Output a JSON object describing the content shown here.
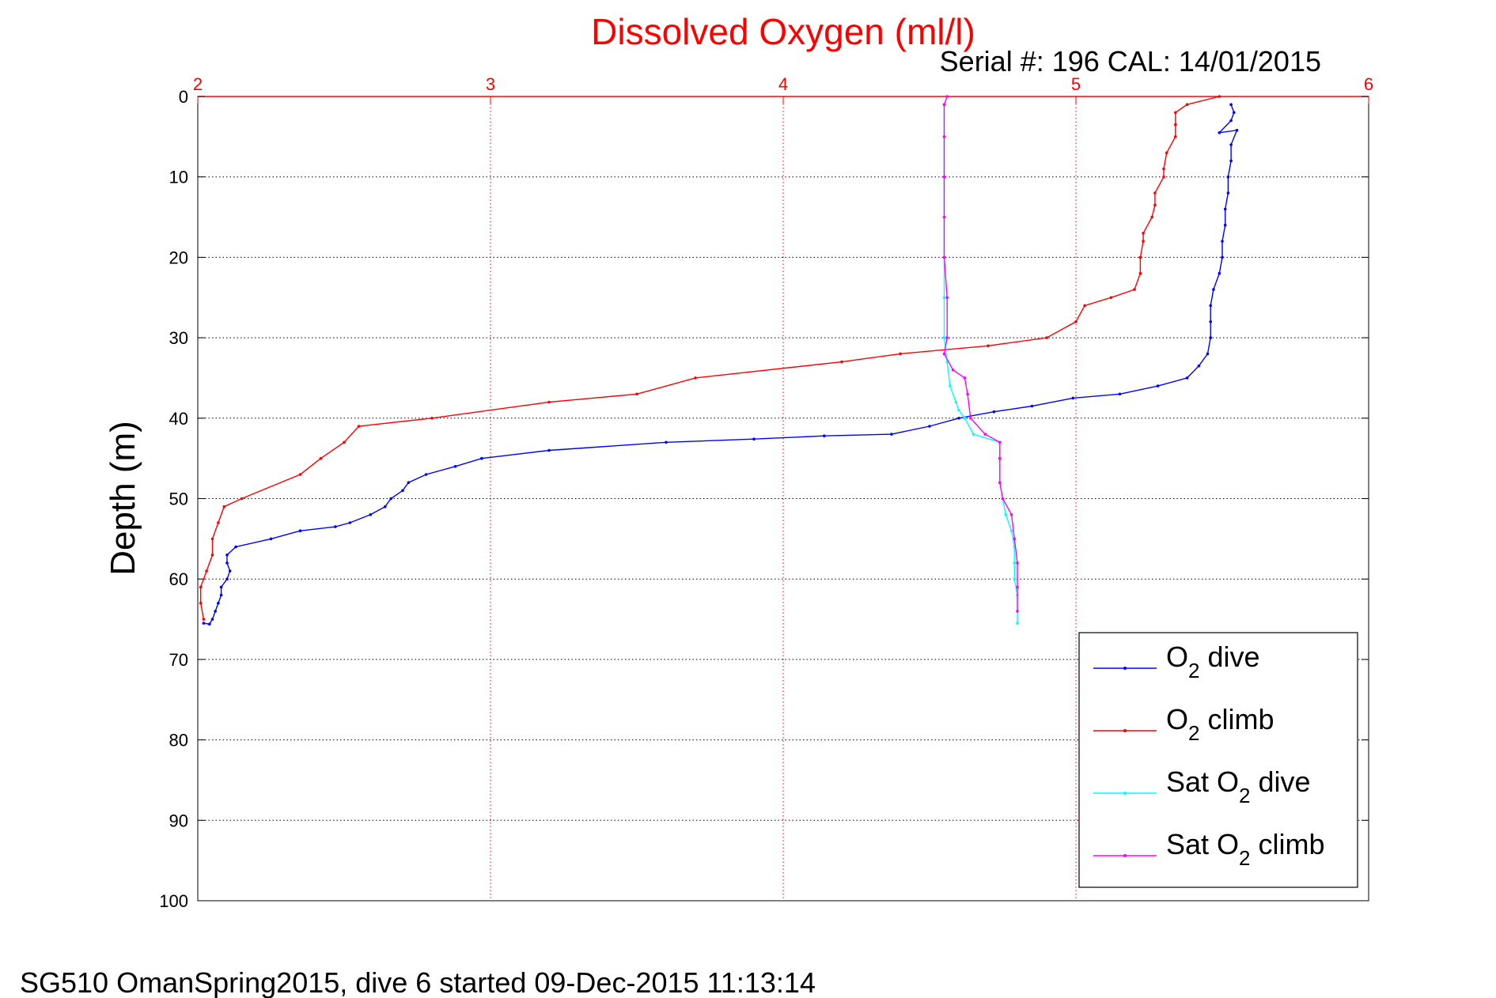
{
  "chart_data": {
    "type": "line",
    "title": "Dissolved Oxygen (ml/l)",
    "subtitle": "Serial #: 196  CAL: 14/01/2015",
    "ylabel": "Depth (m)",
    "caption": "SG510 OmanSpring2015, dive 6 started 09-Dec-2015 11:13:14",
    "xlim": [
      2,
      6
    ],
    "ylim": [
      0,
      100
    ],
    "y_reversed": true,
    "x_axis_position": "top",
    "x_ticks": [
      "2",
      "3",
      "4",
      "5",
      "6"
    ],
    "y_ticks": [
      "0",
      "10",
      "20",
      "30",
      "40",
      "50",
      "60",
      "70",
      "80",
      "90",
      "100"
    ],
    "grid": true,
    "legend_position": "bottom-right",
    "series": [
      {
        "name": "O2 dive",
        "legend_parts": [
          "O",
          "2",
          " dive"
        ],
        "color": "#0000ff",
        "points": [
          [
            5.53,
            1
          ],
          [
            5.54,
            2
          ],
          [
            5.53,
            3
          ],
          [
            5.49,
            4.5
          ],
          [
            5.55,
            4.2
          ],
          [
            5.53,
            6
          ],
          [
            5.53,
            8
          ],
          [
            5.52,
            10
          ],
          [
            5.52,
            12
          ],
          [
            5.51,
            14
          ],
          [
            5.51,
            16
          ],
          [
            5.5,
            18
          ],
          [
            5.5,
            20
          ],
          [
            5.49,
            22
          ],
          [
            5.47,
            24
          ],
          [
            5.46,
            26
          ],
          [
            5.46,
            28
          ],
          [
            5.46,
            30
          ],
          [
            5.45,
            32
          ],
          [
            5.42,
            33.5
          ],
          [
            5.38,
            35
          ],
          [
            5.28,
            36
          ],
          [
            5.15,
            37
          ],
          [
            4.99,
            37.5
          ],
          [
            4.85,
            38.5
          ],
          [
            4.72,
            39.2
          ],
          [
            4.6,
            40
          ],
          [
            4.5,
            41
          ],
          [
            4.37,
            42
          ],
          [
            4.14,
            42.2
          ],
          [
            3.9,
            42.6
          ],
          [
            3.6,
            43
          ],
          [
            3.2,
            44
          ],
          [
            2.97,
            45
          ],
          [
            2.88,
            46
          ],
          [
            2.78,
            47
          ],
          [
            2.72,
            48
          ],
          [
            2.7,
            49
          ],
          [
            2.66,
            50
          ],
          [
            2.64,
            51
          ],
          [
            2.59,
            52
          ],
          [
            2.52,
            53
          ],
          [
            2.47,
            53.5
          ],
          [
            2.35,
            54
          ],
          [
            2.25,
            55
          ],
          [
            2.13,
            56
          ],
          [
            2.1,
            57
          ],
          [
            2.1,
            58
          ],
          [
            2.11,
            59
          ],
          [
            2.1,
            60
          ],
          [
            2.08,
            61
          ],
          [
            2.08,
            62
          ],
          [
            2.07,
            63
          ],
          [
            2.06,
            64
          ],
          [
            2.05,
            65
          ],
          [
            2.04,
            65.6
          ],
          [
            2.02,
            65.5
          ]
        ]
      },
      {
        "name": "O2 climb",
        "legend_parts": [
          "O",
          "2",
          " climb"
        ],
        "color": "#ff0000",
        "points": [
          [
            5.49,
            0
          ],
          [
            5.38,
            1
          ],
          [
            5.34,
            2
          ],
          [
            5.34,
            3.5
          ],
          [
            5.34,
            5
          ],
          [
            5.31,
            7
          ],
          [
            5.3,
            9
          ],
          [
            5.3,
            10
          ],
          [
            5.27,
            12
          ],
          [
            5.27,
            13.5
          ],
          [
            5.26,
            15
          ],
          [
            5.23,
            17
          ],
          [
            5.23,
            18
          ],
          [
            5.22,
            20
          ],
          [
            5.22,
            22
          ],
          [
            5.2,
            24
          ],
          [
            5.12,
            25
          ],
          [
            5.03,
            26
          ],
          [
            5.0,
            28
          ],
          [
            4.9,
            30
          ],
          [
            4.7,
            31
          ],
          [
            4.4,
            32
          ],
          [
            4.2,
            33
          ],
          [
            3.7,
            35
          ],
          [
            3.5,
            37
          ],
          [
            3.2,
            38
          ],
          [
            2.8,
            40
          ],
          [
            2.55,
            41
          ],
          [
            2.5,
            43
          ],
          [
            2.42,
            45
          ],
          [
            2.35,
            47
          ],
          [
            2.15,
            50
          ],
          [
            2.09,
            51
          ],
          [
            2.07,
            53
          ],
          [
            2.05,
            55
          ],
          [
            2.05,
            57
          ],
          [
            2.03,
            59
          ],
          [
            2.01,
            61
          ],
          [
            2.01,
            63
          ],
          [
            2.02,
            65
          ]
        ]
      },
      {
        "name": "Sat O2 dive",
        "legend_parts": [
          "Sat O",
          "2",
          " dive"
        ],
        "color": "#00ffff",
        "points": [
          [
            4.55,
            1
          ],
          [
            4.55,
            5
          ],
          [
            4.55,
            10
          ],
          [
            4.55,
            15
          ],
          [
            4.55,
            20
          ],
          [
            4.55,
            25
          ],
          [
            4.55,
            30
          ],
          [
            4.56,
            33
          ],
          [
            4.57,
            36
          ],
          [
            4.59,
            38
          ],
          [
            4.6,
            39
          ],
          [
            4.62,
            40
          ],
          [
            4.65,
            42
          ],
          [
            4.74,
            43
          ],
          [
            4.74,
            45
          ],
          [
            4.74,
            48
          ],
          [
            4.75,
            50
          ],
          [
            4.76,
            52
          ],
          [
            4.78,
            54
          ],
          [
            4.79,
            56
          ],
          [
            4.79,
            58
          ],
          [
            4.79,
            60
          ],
          [
            4.8,
            62
          ],
          [
            4.8,
            64
          ],
          [
            4.8,
            65.5
          ]
        ]
      },
      {
        "name": "Sat O2 climb",
        "legend_parts": [
          "Sat O",
          "2",
          " climb"
        ],
        "color": "#ff00ff",
        "points": [
          [
            4.56,
            0
          ],
          [
            4.55,
            1
          ],
          [
            4.55,
            5
          ],
          [
            4.55,
            10
          ],
          [
            4.55,
            15
          ],
          [
            4.55,
            20
          ],
          [
            4.56,
            25
          ],
          [
            4.56,
            30
          ],
          [
            4.55,
            32
          ],
          [
            4.58,
            34
          ],
          [
            4.62,
            35
          ],
          [
            4.63,
            37
          ],
          [
            4.64,
            40
          ],
          [
            4.69,
            42
          ],
          [
            4.74,
            43
          ],
          [
            4.74,
            45
          ],
          [
            4.74,
            48
          ],
          [
            4.75,
            50
          ],
          [
            4.78,
            52
          ],
          [
            4.79,
            55
          ],
          [
            4.8,
            58
          ],
          [
            4.8,
            61
          ],
          [
            4.8,
            64
          ]
        ]
      }
    ]
  }
}
